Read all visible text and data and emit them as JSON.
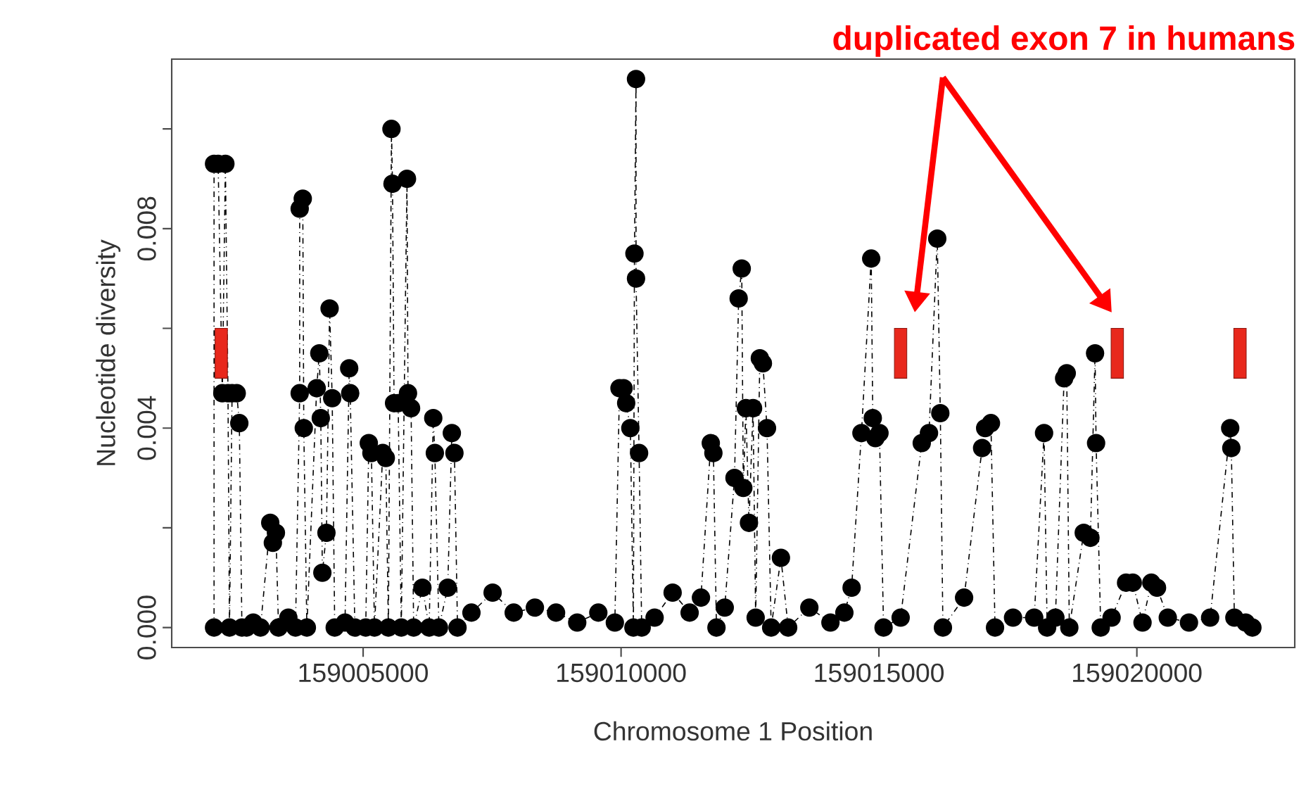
{
  "chart_data": {
    "type": "line",
    "xlabel": "Chromosome 1 Position",
    "ylabel": "Nucleotide diversity",
    "annotations": [
      "duplicated exon 7 in humans"
    ],
    "xlim": [
      159001290,
      159023060
    ],
    "ylim": [
      -0.0004,
      0.0114
    ],
    "xticks": [
      159005000,
      159010000,
      159015000,
      159020000
    ],
    "yticks": [
      {
        "value": 0.0,
        "label": "0.000"
      },
      {
        "value": 0.002,
        "label": null
      },
      {
        "value": 0.004,
        "label": "0.004"
      },
      {
        "value": 0.006,
        "label": null
      },
      {
        "value": 0.008,
        "label": "0.008"
      },
      {
        "value": 0.01,
        "label": null
      }
    ],
    "marker": "circle",
    "line_style": "dashed",
    "series": [
      {
        "color": "#000000",
        "x": [
          159002110,
          159002110,
          159002190,
          159002270,
          159002330,
          159002380,
          159002410,
          159002460,
          159002550,
          159002600,
          159002650,
          159002740,
          159002870,
          159003010,
          159003200,
          159003250,
          159003310,
          159003360,
          159003550,
          159003690,
          159003770,
          159003770,
          159003830,
          159003850,
          159003910,
          159004100,
          159004150,
          159004180,
          159004210,
          159004290,
          159004350,
          159004400,
          159004450,
          159004650,
          159004730,
          159004750,
          159004840,
          159005050,
          159005110,
          159005160,
          159005220,
          159005380,
          159005440,
          159005490,
          159005550,
          159005570,
          159005600,
          159005680,
          159005740,
          159005850,
          159005870,
          159005930,
          159005980,
          159006150,
          159006280,
          159006360,
          159006390,
          159006470,
          159006640,
          159006720,
          159006770,
          159006830,
          159007100,
          159007510,
          159007920,
          159008330,
          159008740,
          159009150,
          159009560,
          159009880,
          159009970,
          159010050,
          159010100,
          159010180,
          159010240,
          159010260,
          159010290,
          159010290,
          159010350,
          159010400,
          159010650,
          159011000,
          159011330,
          159011550,
          159011740,
          159011790,
          159011850,
          159012010,
          159012200,
          159012280,
          159012340,
          159012370,
          159012420,
          159012480,
          159012560,
          159012610,
          159012690,
          159012750,
          159012830,
          159012910,
          159013100,
          159013240,
          159013650,
          159014060,
          159014330,
          159014470,
          159014660,
          159014850,
          159014880,
          159014930,
          159015010,
          159015090,
          159015420,
          159015830,
          159015970,
          159016130,
          159016190,
          159016240,
          159016650,
          159017000,
          159017060,
          159017170,
          159017250,
          159017600,
          159018010,
          159018200,
          159018260,
          159018420,
          159018590,
          159018640,
          159018690,
          159018970,
          159019100,
          159019190,
          159019210,
          159019300,
          159019510,
          159019790,
          159019920,
          159020110,
          159020280,
          159020390,
          159020600,
          159021010,
          159021420,
          159021810,
          159021830,
          159021890,
          159022110,
          159022240
        ],
        "values": [
          0.0,
          0.0093,
          0.0093,
          0.0047,
          0.0093,
          0.0047,
          0.0,
          0.0047,
          0.0047,
          0.0041,
          0.0,
          0.0,
          0.0001,
          0.0,
          0.0021,
          0.0017,
          0.0019,
          0.0,
          0.0002,
          0.0,
          0.0047,
          0.0084,
          0.0086,
          0.004,
          0.0,
          0.0048,
          0.0055,
          0.0042,
          0.0011,
          0.0019,
          0.0064,
          0.0046,
          0.0,
          0.0001,
          0.0052,
          0.0047,
          0.0,
          0.0,
          0.0037,
          0.0035,
          0.0,
          0.0035,
          0.0034,
          0.0,
          0.01,
          0.0089,
          0.0045,
          0.0045,
          0.0,
          0.009,
          0.0047,
          0.0044,
          0.0,
          0.0008,
          0.0,
          0.0042,
          0.0035,
          0.0,
          0.0008,
          0.0039,
          0.0035,
          0.0,
          0.0003,
          0.0007,
          0.0003,
          0.0004,
          0.0003,
          0.0001,
          0.0003,
          0.0001,
          0.0048,
          0.0048,
          0.0045,
          0.004,
          0.0,
          0.0075,
          0.011,
          0.007,
          0.0035,
          0.0,
          0.0002,
          0.0007,
          0.0003,
          0.0006,
          0.0037,
          0.0035,
          0.0,
          0.0004,
          0.003,
          0.0066,
          0.0072,
          0.0028,
          0.0044,
          0.0021,
          0.0044,
          0.0002,
          0.0054,
          0.0053,
          0.004,
          0.0,
          0.0014,
          0.0,
          0.0004,
          0.0001,
          0.0003,
          0.0008,
          0.0039,
          0.0074,
          0.0042,
          0.0038,
          0.0039,
          0.0,
          0.0002,
          0.0037,
          0.0039,
          0.0078,
          0.0043,
          0.0,
          0.0006,
          0.0036,
          0.004,
          0.0041,
          0.0,
          0.0002,
          0.0002,
          0.0039,
          0.0,
          0.0002,
          0.005,
          0.0051,
          0.0,
          0.0019,
          0.0018,
          0.0055,
          0.0037,
          0.0,
          0.0002,
          0.0009,
          0.0009,
          0.0001,
          0.0009,
          0.0008,
          0.0002,
          0.0001,
          0.0002,
          0.004,
          0.0036,
          0.0002,
          0.0001,
          0.0
        ]
      },
      {
        "type": "bar",
        "color": "#e8281c",
        "x": [
          159002250,
          159015420,
          159019620,
          159022000
        ],
        "base": [
          0.005,
          0.005,
          0.005,
          0.005
        ],
        "values": [
          0.001,
          0.001,
          0.001,
          0.001
        ]
      }
    ]
  }
}
